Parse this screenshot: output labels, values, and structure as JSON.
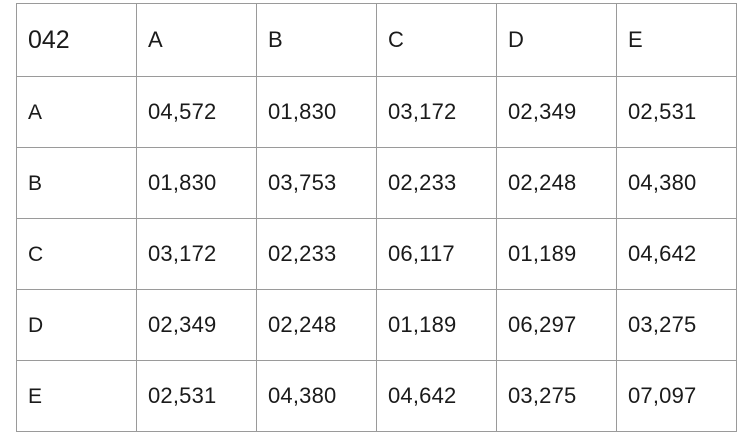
{
  "table": {
    "corner": "042",
    "columns": [
      "A",
      "B",
      "C",
      "D",
      "E"
    ],
    "rows": [
      {
        "label": "A",
        "values": [
          "04,572",
          "01,830",
          "03,172",
          "02,349",
          "02,531"
        ]
      },
      {
        "label": "B",
        "values": [
          "01,830",
          "03,753",
          "02,233",
          "02,248",
          "04,380"
        ]
      },
      {
        "label": "C",
        "values": [
          "03,172",
          "02,233",
          "06,117",
          "01,189",
          "04,642"
        ]
      },
      {
        "label": "D",
        "values": [
          "02,349",
          "02,248",
          "01,189",
          "06,297",
          "03,275"
        ]
      },
      {
        "label": "E",
        "values": [
          "02,531",
          "04,380",
          "04,642",
          "03,275",
          "07,097"
        ]
      }
    ]
  }
}
